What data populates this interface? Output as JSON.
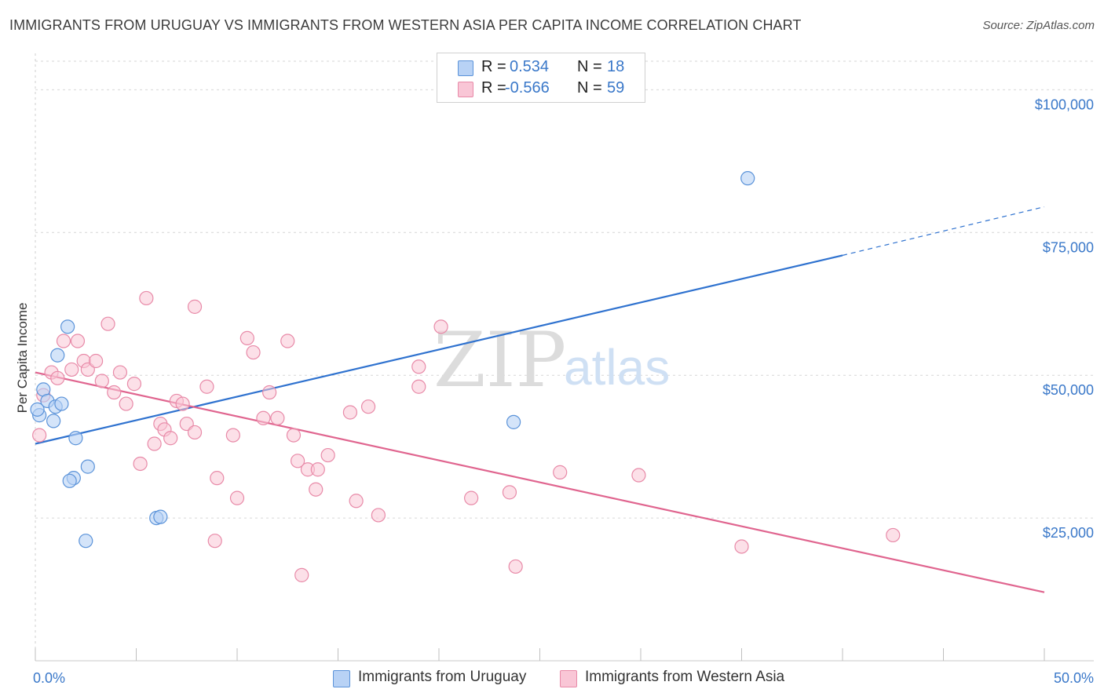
{
  "title": "IMMIGRANTS FROM URUGUAY VS IMMIGRANTS FROM WESTERN ASIA PER CAPITA INCOME CORRELATION CHART",
  "source": "Source: ZipAtlas.com",
  "watermark": {
    "zip": "ZIP",
    "atlas": "atlas"
  },
  "legend": {
    "r_label": "R =",
    "n_label": "N =",
    "series": [
      {
        "name": "Immigrants from Uruguay",
        "r": "0.534",
        "n": "18"
      },
      {
        "name": "Immigrants from Western Asia",
        "r": "-0.566",
        "n": "59"
      }
    ]
  },
  "colors": {
    "blue_fill": "#b8d2f5",
    "blue_stroke": "#5b93d9",
    "blue_line": "#2f72cf",
    "pink_fill": "#f9c6d6",
    "pink_stroke": "#e88aa8",
    "pink_line": "#e0658f",
    "tick_text": "#3a78c9",
    "grid": "#d6d6d6"
  },
  "chart_data": {
    "type": "scatter",
    "title": "IMMIGRANTS FROM URUGUAY VS IMMIGRANTS FROM WESTERN ASIA PER CAPITA INCOME CORRELATION CHART",
    "xlabel": "",
    "ylabel": "Per Capita Income",
    "xlim": [
      0,
      50
    ],
    "ylim": [
      0,
      105000
    ],
    "x_tick_labels": [
      {
        "value": 0,
        "label": "0.0%"
      },
      {
        "value": 50,
        "label": "50.0%"
      }
    ],
    "x_minor_ticks": [
      0,
      5,
      10,
      15,
      20,
      25,
      30,
      35,
      40,
      45,
      50
    ],
    "y_ticks": [
      {
        "value": 25000,
        "label": "$25,000"
      },
      {
        "value": 50000,
        "label": "$50,000"
      },
      {
        "value": 75000,
        "label": "$75,000"
      },
      {
        "value": 100000,
        "label": "$100,000"
      }
    ],
    "grid": true,
    "legend_position": "top-center",
    "series": [
      {
        "name": "Immigrants from Uruguay",
        "color": "blue",
        "points": [
          [
            0.2,
            43000
          ],
          [
            0.4,
            47500
          ],
          [
            0.6,
            45500
          ],
          [
            0.9,
            42000
          ],
          [
            1.0,
            44500
          ],
          [
            1.1,
            53500
          ],
          [
            1.3,
            45000
          ],
          [
            1.6,
            58500
          ],
          [
            2.0,
            39000
          ],
          [
            1.9,
            32000
          ],
          [
            1.7,
            31500
          ],
          [
            2.6,
            34000
          ],
          [
            2.5,
            21000
          ],
          [
            6.0,
            25000
          ],
          [
            6.2,
            25200
          ],
          [
            23.7,
            41800
          ],
          [
            35.3,
            84500
          ],
          [
            0.1,
            44000
          ]
        ],
        "trend": {
          "x": [
            0,
            40
          ],
          "y": [
            38000,
            71000
          ],
          "dashed_to": [
            50,
            79500
          ]
        }
      },
      {
        "name": "Immigrants from Western Asia",
        "color": "pink",
        "points": [
          [
            0.2,
            39500
          ],
          [
            0.4,
            46500
          ],
          [
            0.8,
            50500
          ],
          [
            1.1,
            49500
          ],
          [
            1.4,
            56000
          ],
          [
            1.8,
            51000
          ],
          [
            2.1,
            56000
          ],
          [
            2.4,
            52500
          ],
          [
            2.6,
            51000
          ],
          [
            3.0,
            52500
          ],
          [
            3.3,
            49000
          ],
          [
            3.6,
            59000
          ],
          [
            3.9,
            47000
          ],
          [
            4.2,
            50500
          ],
          [
            4.5,
            45000
          ],
          [
            4.9,
            48500
          ],
          [
            5.2,
            34500
          ],
          [
            5.5,
            63500
          ],
          [
            5.9,
            38000
          ],
          [
            6.2,
            41500
          ],
          [
            6.4,
            40500
          ],
          [
            6.7,
            39000
          ],
          [
            7.0,
            45500
          ],
          [
            7.3,
            45000
          ],
          [
            7.5,
            41500
          ],
          [
            7.9,
            40000
          ],
          [
            7.9,
            62000
          ],
          [
            8.5,
            48000
          ],
          [
            8.9,
            21000
          ],
          [
            9.0,
            32000
          ],
          [
            9.8,
            39500
          ],
          [
            10.0,
            28500
          ],
          [
            10.5,
            56500
          ],
          [
            10.8,
            54000
          ],
          [
            11.3,
            42500
          ],
          [
            11.6,
            47000
          ],
          [
            12.0,
            42500
          ],
          [
            12.5,
            56000
          ],
          [
            12.8,
            39500
          ],
          [
            13.0,
            35000
          ],
          [
            13.2,
            15000
          ],
          [
            13.5,
            33500
          ],
          [
            13.9,
            30000
          ],
          [
            14.0,
            33500
          ],
          [
            14.5,
            36000
          ],
          [
            15.6,
            43500
          ],
          [
            15.9,
            28000
          ],
          [
            16.5,
            44500
          ],
          [
            17.0,
            25500
          ],
          [
            19.0,
            51500
          ],
          [
            19.0,
            48000
          ],
          [
            20.1,
            58500
          ],
          [
            21.6,
            28500
          ],
          [
            23.5,
            29500
          ],
          [
            23.8,
            16500
          ],
          [
            26.0,
            33000
          ],
          [
            29.9,
            32500
          ],
          [
            35.0,
            20000
          ],
          [
            42.5,
            22000
          ]
        ],
        "trend": {
          "x": [
            0,
            50
          ],
          "y": [
            50500,
            12000
          ]
        }
      }
    ]
  }
}
